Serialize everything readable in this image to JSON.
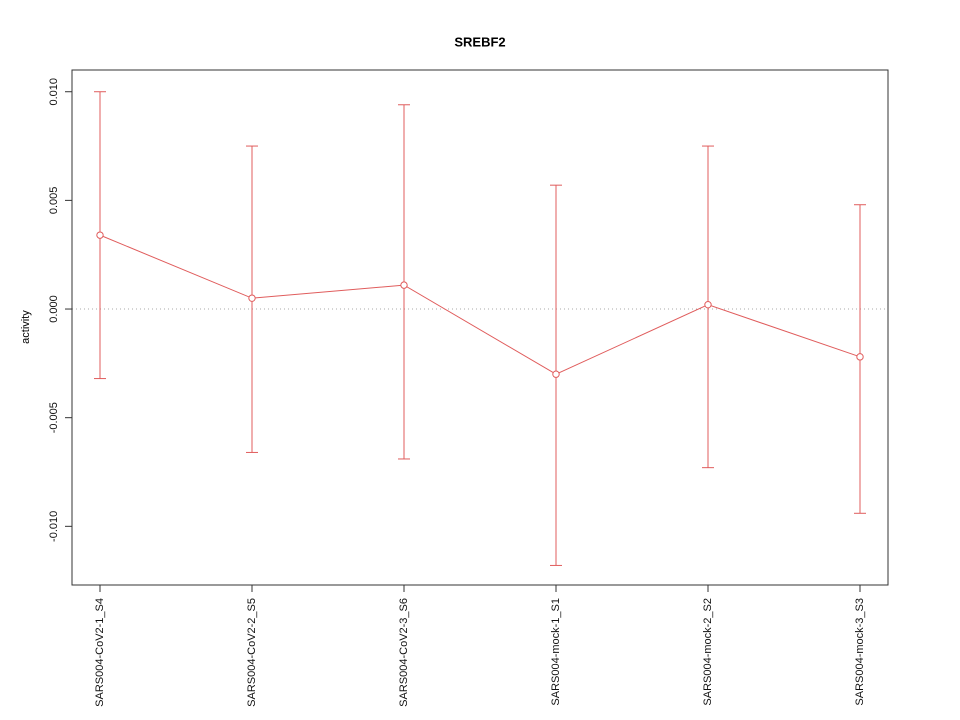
{
  "chart_data": {
    "type": "line",
    "title": "SREBF2",
    "ylabel": "activity",
    "xlabel": "",
    "categories": [
      "SARS004-CoV2-1_S4",
      "SARS004-CoV2-2_S5",
      "SARS004-CoV2-3_S6",
      "SARS004-mock-1_S1",
      "SARS004-mock-2_S2",
      "SARS004-mock-3_S3"
    ],
    "series": [
      {
        "name": "activity",
        "values": [
          0.0034,
          0.0005,
          0.0011,
          -0.003,
          0.0002,
          -0.0022
        ],
        "error_low": [
          -0.0032,
          -0.0066,
          -0.0069,
          -0.0118,
          -0.0073,
          -0.0094
        ],
        "error_high": [
          0.01,
          0.0075,
          0.0094,
          0.0057,
          0.0075,
          0.0048
        ]
      }
    ],
    "ylim": [
      -0.0127,
      0.011
    ],
    "yticks": [
      -0.01,
      -0.005,
      0.0,
      0.005,
      0.01
    ],
    "ytick_labels": [
      "-0.010",
      "-0.005",
      "0.000",
      "0.005",
      "0.010"
    ],
    "reference_line_y": 0,
    "grid": "dotted-zero-line-only",
    "legend": "none",
    "marker": "open-circle",
    "colors": {
      "series": "#e05c5c",
      "reference_line": "#aaaaaa",
      "axis": "#333333",
      "text": "#111111",
      "background": "#ffffff"
    }
  }
}
